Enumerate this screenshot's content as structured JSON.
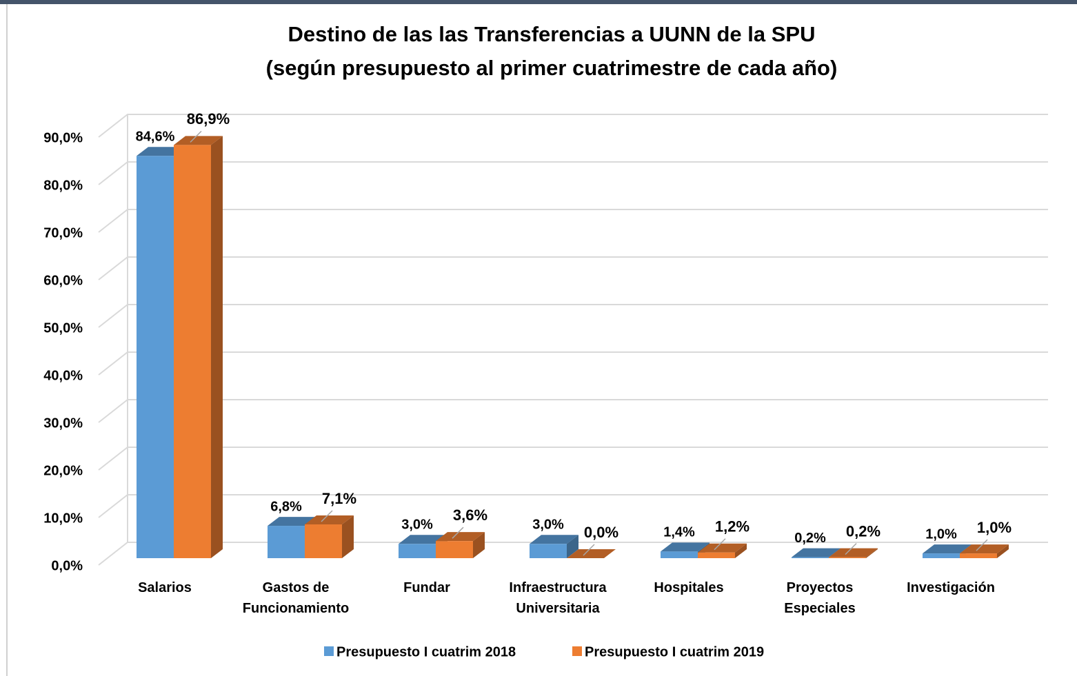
{
  "chart_data": {
    "type": "bar3d",
    "title": "Destino de las las Transferencias a UUNN de la SPU",
    "subtitle": "(según presupuesto al primer cuatrimestre de cada año)",
    "categories": [
      "Salarios",
      "Gastos de Funcionamiento",
      "Fundar",
      "Infraestructura Universitaria",
      "Hospitales",
      "Proyectos Especiales",
      "Investigación"
    ],
    "series": [
      {
        "name": "Presupuesto I cuatrim 2018",
        "color": "#5b9bd5",
        "values": [
          84.6,
          6.8,
          3.0,
          3.0,
          1.4,
          0.2,
          1.0
        ],
        "value_labels": [
          "84,6%",
          "6,8%",
          "3,0%",
          "3,0%",
          "1,4%",
          "0,2%",
          "1,0%"
        ]
      },
      {
        "name": "Presupuesto I cuatrim 2019",
        "color": "#ed7d31",
        "values": [
          86.9,
          7.1,
          3.6,
          0.0,
          1.2,
          0.2,
          1.0
        ],
        "value_labels": [
          "86,9%",
          "7,1%",
          "3,6%",
          "0,0%",
          "1,2%",
          "0,2%",
          "1,0%"
        ]
      }
    ],
    "ylim": [
      0,
      90
    ],
    "yticks": [
      {
        "value": 0,
        "label": "0,0%"
      },
      {
        "value": 10,
        "label": "10,0%"
      },
      {
        "value": 20,
        "label": "20,0%"
      },
      {
        "value": 30,
        "label": "30,0%"
      },
      {
        "value": 40,
        "label": "40,0%"
      },
      {
        "value": 50,
        "label": "50,0%"
      },
      {
        "value": 60,
        "label": "60,0%"
      },
      {
        "value": 70,
        "label": "70,0%"
      },
      {
        "value": 80,
        "label": "80,0%"
      },
      {
        "value": 90,
        "label": "90,0%"
      }
    ],
    "grid": true,
    "legend": "bottom"
  }
}
